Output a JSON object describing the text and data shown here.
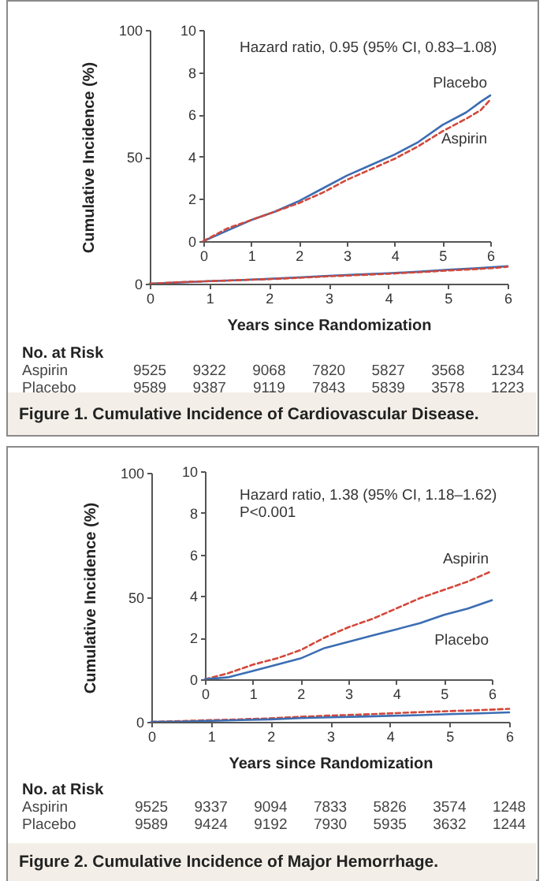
{
  "chart_data": [
    {
      "type": "line",
      "title": "Figure 1. Cumulative Incidence of Cardiovascular Disease.",
      "xlabel": "Years since Randomization",
      "ylabel": "Cumulative Incidence (%)",
      "xlim": [
        0,
        6
      ],
      "ylim": [
        0,
        100
      ],
      "xticks": [
        0,
        1,
        2,
        3,
        4,
        5,
        6
      ],
      "yticks": [
        0,
        50,
        100
      ],
      "series": [
        {
          "color": "#3b6db3",
          "line_style": "solid",
          "x": [
            0,
            0.5,
            1,
            1.5,
            2,
            2.5,
            3,
            3.5,
            4,
            4.5,
            5,
            5.5,
            5.8,
            6
          ],
          "values": [
            0,
            0.5,
            1,
            1.4,
            1.9,
            2.5,
            3.1,
            3.6,
            4.1,
            4.7,
            5.5,
            6.1,
            6.6,
            6.9
          ]
        },
        {
          "color": "#d2483a",
          "line_style": "dashed",
          "x": [
            0,
            0.5,
            1,
            1.5,
            2,
            2.5,
            3,
            3.5,
            4,
            4.5,
            5,
            5.5,
            5.8,
            6
          ],
          "values": [
            0,
            0.6,
            1,
            1.4,
            1.8,
            2.3,
            2.9,
            3.4,
            3.9,
            4.5,
            5.2,
            5.8,
            6.2,
            6.7
          ]
        }
      ],
      "annotations": [
        "No. at Risk",
        "Aspirin",
        "9525",
        "9322",
        "9068",
        "7820",
        "5827",
        "3568",
        "1234",
        "Placebo",
        "9589",
        "9387",
        "9119",
        "7843",
        "5839",
        "3578",
        "1223"
      ]
    },
    {
      "type": "line",
      "xlim": [
        0,
        6
      ],
      "ylim": [
        0,
        10
      ],
      "xticks": [
        0,
        1,
        2,
        3,
        4,
        5,
        6
      ],
      "yticks": [
        0,
        2,
        4,
        6,
        8,
        10
      ],
      "series": [
        {
          "name": "Placebo",
          "color": "#3b6db3",
          "line_style": "solid",
          "x": [
            0,
            0.5,
            1,
            1.5,
            2,
            2.5,
            3,
            3.5,
            4,
            4.5,
            5,
            5.5,
            5.8,
            6
          ],
          "values": [
            0,
            0.5,
            1,
            1.4,
            1.9,
            2.5,
            3.1,
            3.6,
            4.1,
            4.7,
            5.5,
            6.1,
            6.6,
            6.9
          ]
        },
        {
          "name": "Aspirin",
          "color": "#d2483a",
          "line_style": "dashed",
          "x": [
            0,
            0.5,
            1,
            1.5,
            2,
            2.5,
            3,
            3.5,
            4,
            4.5,
            5,
            5.5,
            5.8,
            6
          ],
          "values": [
            0,
            0.6,
            1,
            1.4,
            1.8,
            2.3,
            2.9,
            3.4,
            3.9,
            4.5,
            5.2,
            5.8,
            6.2,
            6.7
          ]
        }
      ],
      "annotations": [
        "Hazard ratio, 0.95 (95% CI, 0.83–1.08)"
      ]
    },
    {
      "type": "line",
      "title": "Figure 2. Cumulative Incidence of Major Hemorrhage.",
      "xlabel": "Years since Randomization",
      "ylabel": "Cumulative Incidence (%)",
      "xlim": [
        0,
        6
      ],
      "ylim": [
        0,
        100
      ],
      "xticks": [
        0,
        1,
        2,
        3,
        4,
        5,
        6
      ],
      "yticks": [
        0,
        50,
        100
      ],
      "series": [
        {
          "color": "#d2483a",
          "line_style": "dashed",
          "x": [
            0,
            0.5,
            1,
            1.5,
            2,
            2.5,
            3,
            3.5,
            4,
            4.5,
            5,
            5.5,
            6
          ],
          "values": [
            0,
            0.3,
            0.7,
            1,
            1.4,
            2,
            2.5,
            2.9,
            3.4,
            3.9,
            4.3,
            4.7,
            5.2
          ]
        },
        {
          "color": "#3b6db3",
          "line_style": "solid",
          "x": [
            0,
            0.5,
            1,
            1.5,
            2,
            2.5,
            3,
            3.5,
            4,
            4.5,
            5,
            5.5,
            6
          ],
          "values": [
            0,
            0.1,
            0.4,
            0.7,
            1,
            1.5,
            1.8,
            2.1,
            2.4,
            2.7,
            3.1,
            3.4,
            3.8
          ]
        }
      ],
      "annotations": [
        "No. at Risk",
        "Aspirin",
        "9525",
        "9337",
        "9094",
        "7833",
        "5826",
        "3574",
        "1248",
        "Placebo",
        "9589",
        "9424",
        "9192",
        "7930",
        "5935",
        "3632",
        "1244"
      ]
    },
    {
      "type": "line",
      "xlim": [
        0,
        6
      ],
      "ylim": [
        0,
        10
      ],
      "xticks": [
        0,
        1,
        2,
        3,
        4,
        5,
        6
      ],
      "yticks": [
        0,
        2,
        4,
        6,
        8,
        10
      ],
      "series": [
        {
          "name": "Aspirin",
          "color": "#d2483a",
          "line_style": "dashed",
          "x": [
            0,
            0.5,
            1,
            1.5,
            2,
            2.5,
            3,
            3.5,
            4,
            4.5,
            5,
            5.5,
            6
          ],
          "values": [
            0,
            0.3,
            0.7,
            1,
            1.4,
            2,
            2.5,
            2.9,
            3.4,
            3.9,
            4.3,
            4.7,
            5.2
          ]
        },
        {
          "name": "Placebo",
          "color": "#3b6db3",
          "line_style": "solid",
          "x": [
            0,
            0.5,
            1,
            1.5,
            2,
            2.5,
            3,
            3.5,
            4,
            4.5,
            5,
            5.5,
            6
          ],
          "values": [
            0,
            0.1,
            0.4,
            0.7,
            1,
            1.5,
            1.8,
            2.1,
            2.4,
            2.7,
            3.1,
            3.4,
            3.8
          ]
        }
      ],
      "annotations": [
        "Hazard ratio, 1.38 (95% CI, 1.18–1.62)",
        "P<0.001"
      ]
    }
  ]
}
